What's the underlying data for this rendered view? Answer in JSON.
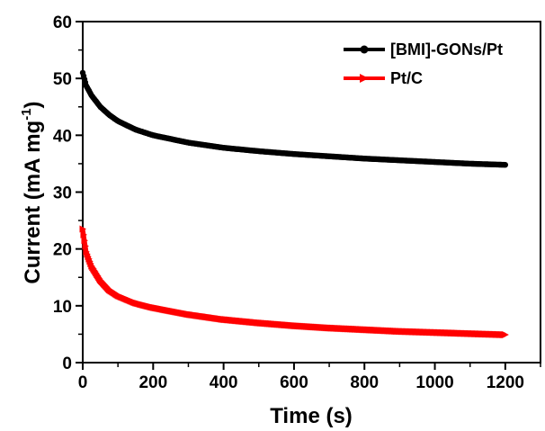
{
  "chart_data": {
    "type": "line",
    "xlabel": "Time (s)",
    "ylabel_main": "Current (mA mg",
    "ylabel_sup": "-1",
    "ylabel_close": ")",
    "xlim": [
      0,
      1300
    ],
    "ylim": [
      0,
      60
    ],
    "xticks": [
      0,
      200,
      400,
      600,
      800,
      1000,
      1200
    ],
    "yticks": [
      0,
      10,
      20,
      30,
      40,
      50,
      60
    ],
    "grid": false,
    "legend_position": "top-right",
    "series": [
      {
        "name": "[BMI]-GONs/Pt",
        "color": "#000000",
        "marker": "circle",
        "x": [
          0,
          10,
          25,
          50,
          75,
          100,
          150,
          200,
          300,
          400,
          500,
          600,
          700,
          800,
          900,
          1000,
          1100,
          1200
        ],
        "y": [
          51,
          48.7,
          47.0,
          45.0,
          43.6,
          42.5,
          41.0,
          40.0,
          38.7,
          37.8,
          37.2,
          36.7,
          36.3,
          35.9,
          35.6,
          35.3,
          35.0,
          34.8
        ]
      },
      {
        "name": "Pt/C",
        "color": "#ff0000",
        "marker": "triangle-right",
        "x": [
          0,
          10,
          25,
          50,
          75,
          100,
          150,
          200,
          300,
          400,
          500,
          600,
          700,
          800,
          900,
          1000,
          1100,
          1200
        ],
        "y": [
          23.5,
          19.5,
          17.0,
          14.5,
          12.8,
          11.8,
          10.5,
          9.7,
          8.5,
          7.6,
          7.0,
          6.5,
          6.1,
          5.8,
          5.5,
          5.3,
          5.1,
          4.9
        ]
      }
    ]
  }
}
